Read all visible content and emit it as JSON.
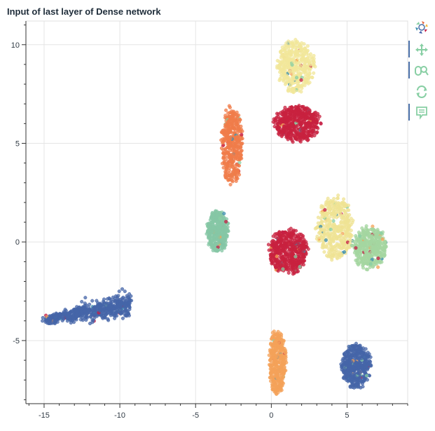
{
  "chart_data": {
    "type": "scatter",
    "title": "Input of last layer of Dense network",
    "xlabel": "",
    "ylabel": "",
    "xlim": [
      -16.2,
      9.0
    ],
    "ylim": [
      -8.2,
      11.2
    ],
    "xticks": [
      -15,
      -10,
      -5,
      0,
      5
    ],
    "yticks": [
      10,
      5,
      0,
      -5
    ],
    "xtick_labels": [
      "-15",
      "-10",
      "-5",
      "0",
      "5"
    ],
    "ytick_labels": [
      "10",
      "5",
      "0",
      "-5"
    ],
    "grid": true,
    "legend": "none",
    "colors": [
      "#3f5fa8",
      "#3d8fb0",
      "#88cfa4",
      "#d0ea9b",
      "#f1e89a",
      "#fad58c",
      "#f4a257",
      "#e6653e",
      "#c51f47",
      "#9e0142"
    ],
    "clusters": [
      {
        "color": "#4565a8",
        "shape": "band",
        "x1": -14.9,
        "y1": -3.95,
        "x2": -9.3,
        "y2": -3.15,
        "w1": 0.2,
        "w2": 0.7,
        "n": 650
      },
      {
        "color": "#86c7a5",
        "shape": "ellipse",
        "cx": -3.55,
        "cy": 0.55,
        "rx": 0.7,
        "ry": 1.1,
        "n": 400
      },
      {
        "color": "#f07c4a",
        "shape": "ellipse",
        "cx": -2.6,
        "cy": 4.9,
        "rx": 0.7,
        "ry": 1.9,
        "n": 420
      },
      {
        "color": "#f2e79a",
        "shape": "ellipse",
        "cx": 1.6,
        "cy": 8.9,
        "rx": 1.2,
        "ry": 1.3,
        "n": 430
      },
      {
        "color": "#c8213f",
        "shape": "ellipse",
        "cx": 1.7,
        "cy": 6.0,
        "rx": 1.5,
        "ry": 0.9,
        "n": 520
      },
      {
        "color": "#efe394",
        "shape": "ellipse",
        "cx": 4.2,
        "cy": 0.7,
        "rx": 1.2,
        "ry": 1.6,
        "n": 420
      },
      {
        "color": "#c8213f",
        "shape": "ellipse",
        "cx": 1.1,
        "cy": -0.5,
        "rx": 1.3,
        "ry": 1.1,
        "n": 520
      },
      {
        "color": "#a4d6a0",
        "shape": "ellipse",
        "cx": 6.5,
        "cy": -0.3,
        "rx": 1.1,
        "ry": 1.05,
        "n": 420
      },
      {
        "color": "#f4a259",
        "shape": "ellipse",
        "cx": 0.4,
        "cy": -6.1,
        "rx": 0.55,
        "ry": 1.6,
        "n": 420
      },
      {
        "color": "#4565a8",
        "shape": "ellipse",
        "cx": 5.6,
        "cy": -6.3,
        "rx": 0.95,
        "ry": 1.1,
        "n": 480
      }
    ]
  },
  "toolbar": {
    "logo": "bokeh-logo-icon",
    "tools": [
      "pan-icon",
      "box-zoom-icon",
      "reset-icon",
      "hover-icon"
    ]
  }
}
